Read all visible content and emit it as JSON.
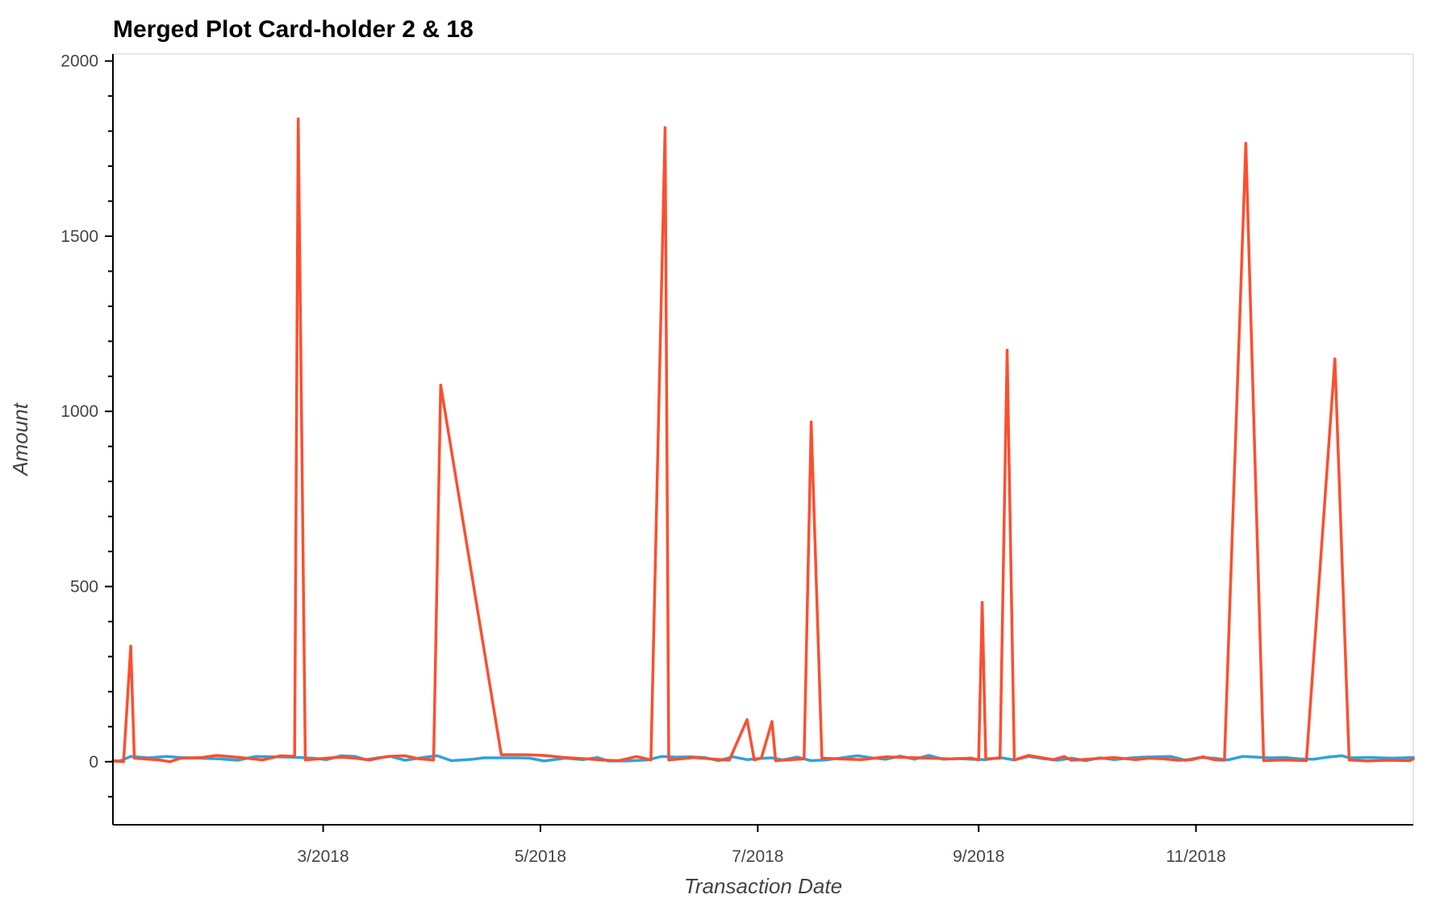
{
  "chart_data": {
    "type": "line",
    "title": "Merged Plot Card-holder 2 & 18",
    "xlabel": "Transaction Date",
    "ylabel": "Amount",
    "xlim": [
      "2018-01-01",
      "2019-01-01"
    ],
    "ylim": [
      -180,
      2020
    ],
    "y_ticks": [
      0,
      500,
      1000,
      1500,
      2000
    ],
    "y_minor_step": 100,
    "x_ticks": [
      {
        "date": "2018-03-01",
        "label": "3/2018"
      },
      {
        "date": "2018-05-01",
        "label": "5/2018"
      },
      {
        "date": "2018-07-01",
        "label": "7/2018"
      },
      {
        "date": "2018-09-01",
        "label": "9/2018"
      },
      {
        "date": "2018-11-01",
        "label": "11/2018"
      }
    ],
    "grid": false,
    "legend": "none",
    "series": [
      {
        "color": "#30a2da",
        "points": [
          [
            "2018-01-01",
            3
          ],
          [
            "2018-01-03",
            2
          ],
          [
            "2018-01-06",
            15
          ],
          [
            "2018-01-11",
            11
          ],
          [
            "2018-01-16",
            15
          ],
          [
            "2018-01-20",
            12
          ],
          [
            "2018-01-25",
            10
          ],
          [
            "2018-01-31",
            8
          ],
          [
            "2018-02-05",
            4
          ],
          [
            "2018-02-10",
            15
          ],
          [
            "2018-02-15",
            14
          ],
          [
            "2018-02-20",
            13
          ],
          [
            "2018-02-26",
            10
          ],
          [
            "2018-03-02",
            6
          ],
          [
            "2018-03-06",
            17
          ],
          [
            "2018-03-10",
            15
          ],
          [
            "2018-03-13",
            6
          ],
          [
            "2018-03-17",
            12
          ],
          [
            "2018-03-20",
            15
          ],
          [
            "2018-03-24",
            4
          ],
          [
            "2018-03-29",
            12
          ],
          [
            "2018-04-02",
            17
          ],
          [
            "2018-04-06",
            3
          ],
          [
            "2018-04-12",
            7
          ],
          [
            "2018-04-15",
            11
          ],
          [
            "2018-04-25",
            11
          ],
          [
            "2018-04-28",
            10
          ],
          [
            "2018-05-02",
            2
          ],
          [
            "2018-05-08",
            10
          ],
          [
            "2018-05-13",
            6
          ],
          [
            "2018-05-17",
            12
          ],
          [
            "2018-05-20",
            2
          ],
          [
            "2018-05-25",
            2
          ],
          [
            "2018-05-31",
            5
          ],
          [
            "2018-06-04",
            15
          ],
          [
            "2018-06-08",
            13
          ],
          [
            "2018-06-12",
            14
          ],
          [
            "2018-06-16",
            12
          ],
          [
            "2018-06-20",
            3
          ],
          [
            "2018-06-24",
            14
          ],
          [
            "2018-06-28",
            6
          ],
          [
            "2018-07-01",
            9
          ],
          [
            "2018-07-05",
            11
          ],
          [
            "2018-07-08",
            5
          ],
          [
            "2018-07-12",
            13
          ],
          [
            "2018-07-16",
            3
          ],
          [
            "2018-07-20",
            5
          ],
          [
            "2018-07-24",
            10
          ],
          [
            "2018-07-29",
            17
          ],
          [
            "2018-08-02",
            11
          ],
          [
            "2018-08-06",
            7
          ],
          [
            "2018-08-10",
            16
          ],
          [
            "2018-08-14",
            7
          ],
          [
            "2018-08-18",
            18
          ],
          [
            "2018-08-22",
            7
          ],
          [
            "2018-08-26",
            9
          ],
          [
            "2018-08-30",
            7
          ],
          [
            "2018-09-03",
            6
          ],
          [
            "2018-09-07",
            12
          ],
          [
            "2018-09-11",
            5
          ],
          [
            "2018-09-15",
            15
          ],
          [
            "2018-09-19",
            9
          ],
          [
            "2018-09-23",
            4
          ],
          [
            "2018-09-27",
            10
          ],
          [
            "2018-10-01",
            3
          ],
          [
            "2018-10-05",
            11
          ],
          [
            "2018-10-09",
            6
          ],
          [
            "2018-10-13",
            10
          ],
          [
            "2018-10-17",
            13
          ],
          [
            "2018-10-21",
            14
          ],
          [
            "2018-10-25",
            15
          ],
          [
            "2018-10-29",
            4
          ],
          [
            "2018-11-02",
            12
          ],
          [
            "2018-11-06",
            10
          ],
          [
            "2018-11-10",
            5
          ],
          [
            "2018-11-14",
            15
          ],
          [
            "2018-11-18",
            13
          ],
          [
            "2018-11-22",
            11
          ],
          [
            "2018-11-26",
            12
          ],
          [
            "2018-11-30",
            8
          ],
          [
            "2018-12-04",
            7
          ],
          [
            "2018-12-08",
            13
          ],
          [
            "2018-12-12",
            17
          ],
          [
            "2018-12-14",
            11
          ],
          [
            "2018-12-20",
            12
          ],
          [
            "2018-12-26",
            10
          ],
          [
            "2019-01-01",
            12
          ]
        ]
      },
      {
        "color": "#fc4f30",
        "points": [
          [
            "2018-01-01",
            2
          ],
          [
            "2018-01-02",
            1
          ],
          [
            "2018-01-04",
            0
          ],
          [
            "2018-01-06",
            330
          ],
          [
            "2018-01-07",
            10
          ],
          [
            "2018-01-14",
            5
          ],
          [
            "2018-01-17",
            0
          ],
          [
            "2018-01-20",
            10
          ],
          [
            "2018-01-26",
            12
          ],
          [
            "2018-01-30",
            18
          ],
          [
            "2018-02-06",
            12
          ],
          [
            "2018-02-12",
            5
          ],
          [
            "2018-02-17",
            17
          ],
          [
            "2018-02-21",
            15
          ],
          [
            "2018-02-22",
            1835
          ],
          [
            "2018-02-24",
            5
          ],
          [
            "2018-03-02",
            10
          ],
          [
            "2018-03-06",
            13
          ],
          [
            "2018-03-10",
            10
          ],
          [
            "2018-03-14",
            5
          ],
          [
            "2018-03-19",
            15
          ],
          [
            "2018-03-24",
            17
          ],
          [
            "2018-03-28",
            8
          ],
          [
            "2018-04-01",
            5
          ],
          [
            "2018-04-03",
            1075
          ],
          [
            "2018-04-20",
            20
          ],
          [
            "2018-04-27",
            20
          ],
          [
            "2018-05-02",
            18
          ],
          [
            "2018-05-08",
            12
          ],
          [
            "2018-05-14",
            8
          ],
          [
            "2018-05-18",
            5
          ],
          [
            "2018-05-23",
            3
          ],
          [
            "2018-05-28",
            15
          ],
          [
            "2018-06-01",
            5
          ],
          [
            "2018-06-05",
            1810
          ],
          [
            "2018-06-06",
            5
          ],
          [
            "2018-06-13",
            12
          ],
          [
            "2018-06-18",
            8
          ],
          [
            "2018-06-23",
            4
          ],
          [
            "2018-06-28",
            120
          ],
          [
            "2018-06-30",
            5
          ],
          [
            "2018-07-02",
            10
          ],
          [
            "2018-07-05",
            115
          ],
          [
            "2018-07-06",
            3
          ],
          [
            "2018-07-14",
            8
          ],
          [
            "2018-07-16",
            970
          ],
          [
            "2018-07-19",
            10
          ],
          [
            "2018-07-24",
            8
          ],
          [
            "2018-07-30",
            6
          ],
          [
            "2018-08-06",
            14
          ],
          [
            "2018-08-12",
            12
          ],
          [
            "2018-08-18",
            10
          ],
          [
            "2018-08-24",
            8
          ],
          [
            "2018-08-30",
            10
          ],
          [
            "2018-09-01",
            5
          ],
          [
            "2018-09-02",
            455
          ],
          [
            "2018-09-03",
            8
          ],
          [
            "2018-09-07",
            10
          ],
          [
            "2018-09-09",
            1175
          ],
          [
            "2018-09-11",
            5
          ],
          [
            "2018-09-15",
            18
          ],
          [
            "2018-09-22",
            6
          ],
          [
            "2018-09-25",
            15
          ],
          [
            "2018-09-27",
            4
          ],
          [
            "2018-10-03",
            8
          ],
          [
            "2018-10-09",
            12
          ],
          [
            "2018-10-15",
            6
          ],
          [
            "2018-10-19",
            10
          ],
          [
            "2018-10-23",
            8
          ],
          [
            "2018-10-27",
            4
          ],
          [
            "2018-10-31",
            6
          ],
          [
            "2018-11-03",
            14
          ],
          [
            "2018-11-06",
            6
          ],
          [
            "2018-11-09",
            4
          ],
          [
            "2018-11-15",
            1765
          ],
          [
            "2018-11-20",
            3
          ],
          [
            "2018-11-26",
            5
          ],
          [
            "2018-12-02",
            3
          ],
          [
            "2018-12-10",
            1150
          ],
          [
            "2018-12-14",
            5
          ],
          [
            "2018-12-19",
            2
          ],
          [
            "2018-12-25",
            4
          ],
          [
            "2018-12-31",
            3
          ],
          [
            "2019-01-01",
            8
          ]
        ]
      }
    ]
  }
}
